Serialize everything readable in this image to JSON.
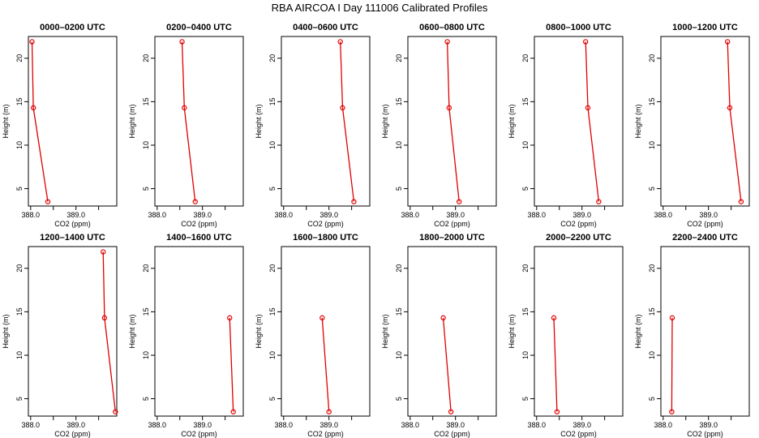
{
  "title": "RBA AIRCOA I  Day 111006  Calibrated Profiles",
  "colors": {
    "line": "#e00000",
    "axis": "#000000"
  },
  "axes": {
    "xlabel": "CO2 (ppm)",
    "ylabel": "Height (m)",
    "xlim": [
      387.95,
      389.9
    ],
    "ylim": [
      3,
      22.5
    ],
    "xticks": [
      388.0,
      388.5,
      389.0,
      389.5
    ],
    "xtick_labels": [
      "388.0",
      "",
      "389.0",
      ""
    ],
    "yticks": [
      5,
      10,
      15,
      20
    ],
    "ytick_labels": [
      "5",
      "10",
      "15",
      "20"
    ]
  },
  "chart_data": [
    {
      "type": "line",
      "title": "0000–0200 UTC",
      "points": [
        {
          "x": 388.03,
          "y": 21.9
        },
        {
          "x": 388.06,
          "y": 14.3
        },
        {
          "x": 388.38,
          "y": 3.5
        }
      ]
    },
    {
      "type": "line",
      "title": "0200–0400 UTC",
      "points": [
        {
          "x": 388.55,
          "y": 21.9
        },
        {
          "x": 388.6,
          "y": 14.3
        },
        {
          "x": 388.84,
          "y": 3.5
        }
      ]
    },
    {
      "type": "line",
      "title": "0400–0600 UTC",
      "points": [
        {
          "x": 389.25,
          "y": 21.9
        },
        {
          "x": 389.3,
          "y": 14.3
        },
        {
          "x": 389.55,
          "y": 3.5
        }
      ]
    },
    {
      "type": "line",
      "title": "0600–0800 UTC",
      "points": [
        {
          "x": 388.82,
          "y": 21.9
        },
        {
          "x": 388.86,
          "y": 14.3
        },
        {
          "x": 389.08,
          "y": 3.5
        }
      ]
    },
    {
      "type": "line",
      "title": "0800–1000 UTC",
      "points": [
        {
          "x": 389.08,
          "y": 21.9
        },
        {
          "x": 389.13,
          "y": 14.3
        },
        {
          "x": 389.37,
          "y": 3.5
        }
      ]
    },
    {
      "type": "line",
      "title": "1000–1200 UTC",
      "points": [
        {
          "x": 389.42,
          "y": 21.9
        },
        {
          "x": 389.47,
          "y": 14.3
        },
        {
          "x": 389.72,
          "y": 3.5
        }
      ]
    },
    {
      "type": "line",
      "title": "1200–1400 UTC",
      "points": [
        {
          "x": 389.6,
          "y": 21.9
        },
        {
          "x": 389.63,
          "y": 14.3
        },
        {
          "x": 389.87,
          "y": 3.5
        }
      ]
    },
    {
      "type": "line",
      "title": "1400–1600 UTC",
      "points": [
        {
          "x": 389.6,
          "y": 14.3
        },
        {
          "x": 389.68,
          "y": 3.5
        }
      ]
    },
    {
      "type": "line",
      "title": "1600–1800 UTC",
      "points": [
        {
          "x": 388.85,
          "y": 14.3
        },
        {
          "x": 389.0,
          "y": 3.5
        }
      ]
    },
    {
      "type": "line",
      "title": "1800–2000 UTC",
      "points": [
        {
          "x": 388.73,
          "y": 14.3
        },
        {
          "x": 388.9,
          "y": 3.5
        }
      ]
    },
    {
      "type": "line",
      "title": "2000–2200 UTC",
      "points": [
        {
          "x": 388.38,
          "y": 14.3
        },
        {
          "x": 388.45,
          "y": 3.5
        }
      ]
    },
    {
      "type": "line",
      "title": "2200–2400 UTC",
      "points": [
        {
          "x": 388.2,
          "y": 14.3
        },
        {
          "x": 388.19,
          "y": 3.5
        }
      ]
    }
  ]
}
